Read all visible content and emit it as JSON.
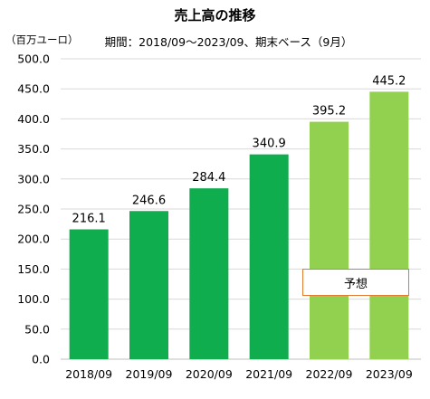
{
  "title": "売上高の推移",
  "subtitle": "期間：2018/09～2023/09、期末ベース（9月）",
  "unit": "（百万ユーロ）",
  "forecast_label": "予想",
  "colors": {
    "actual": "#0fad4e",
    "forecast": "#92d050",
    "forecast_border": "#e07b2f",
    "grid": "#d9d9d9"
  },
  "chart_data": {
    "type": "bar",
    "categories": [
      "2018/09",
      "2019/09",
      "2020/09",
      "2021/09",
      "2022/09",
      "2023/09"
    ],
    "values": [
      216.1,
      246.6,
      284.4,
      340.9,
      395.2,
      445.2
    ],
    "data_labels": [
      "216.1",
      "246.6",
      "284.4",
      "340.9",
      "395.2",
      "445.2"
    ],
    "forecast": [
      false,
      false,
      false,
      false,
      true,
      true
    ],
    "ylim": [
      0,
      500
    ],
    "yticks": [
      "0.0",
      "50.0",
      "100.0",
      "150.0",
      "200.0",
      "250.0",
      "300.0",
      "350.0",
      "400.0",
      "450.0",
      "500.0"
    ],
    "grid": true,
    "legend": "none"
  }
}
